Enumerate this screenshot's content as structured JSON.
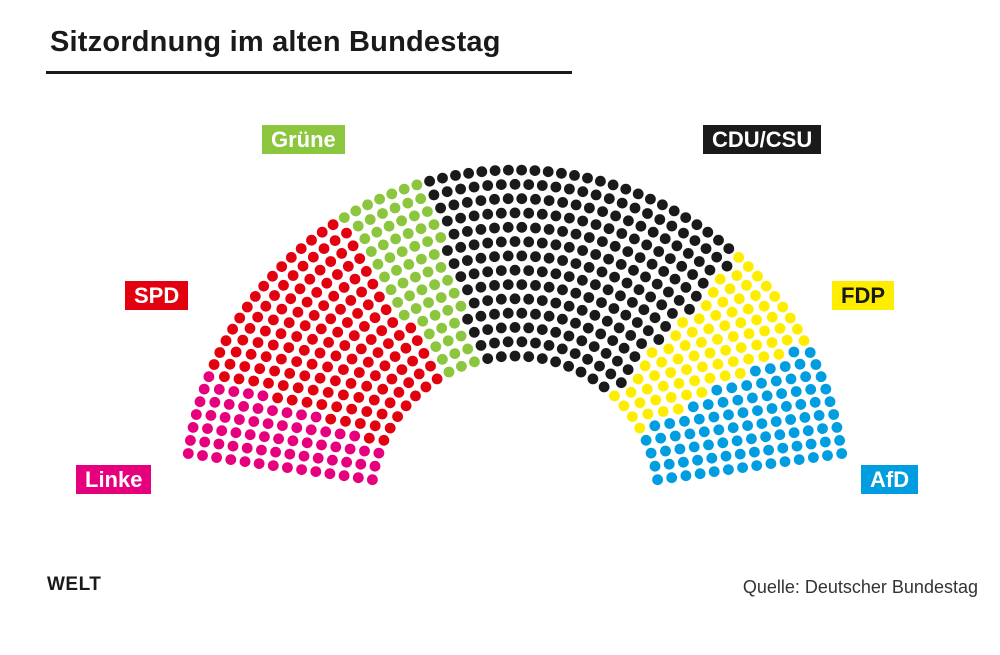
{
  "title": "Sitzordnung im alten Bundestag",
  "brand": "WELT",
  "source": "Quelle: Deutscher Bundestag",
  "chart_data": {
    "type": "parliament",
    "title": "Sitzordnung im alten Bundestag",
    "total_seats": 709,
    "series": [
      {
        "name": "Linke",
        "seats": 69,
        "color": "#e6007e"
      },
      {
        "name": "SPD",
        "seats": 153,
        "color": "#e3000f"
      },
      {
        "name": "Grüne",
        "seats": 67,
        "color": "#8cc63f"
      },
      {
        "name": "CDU/CSU",
        "seats": 246,
        "color": "#1a1a1a"
      },
      {
        "name": "FDP",
        "seats": 80,
        "color": "#ffed00"
      },
      {
        "name": "AfD",
        "seats": 94,
        "color": "#009ee0"
      }
    ]
  }
}
